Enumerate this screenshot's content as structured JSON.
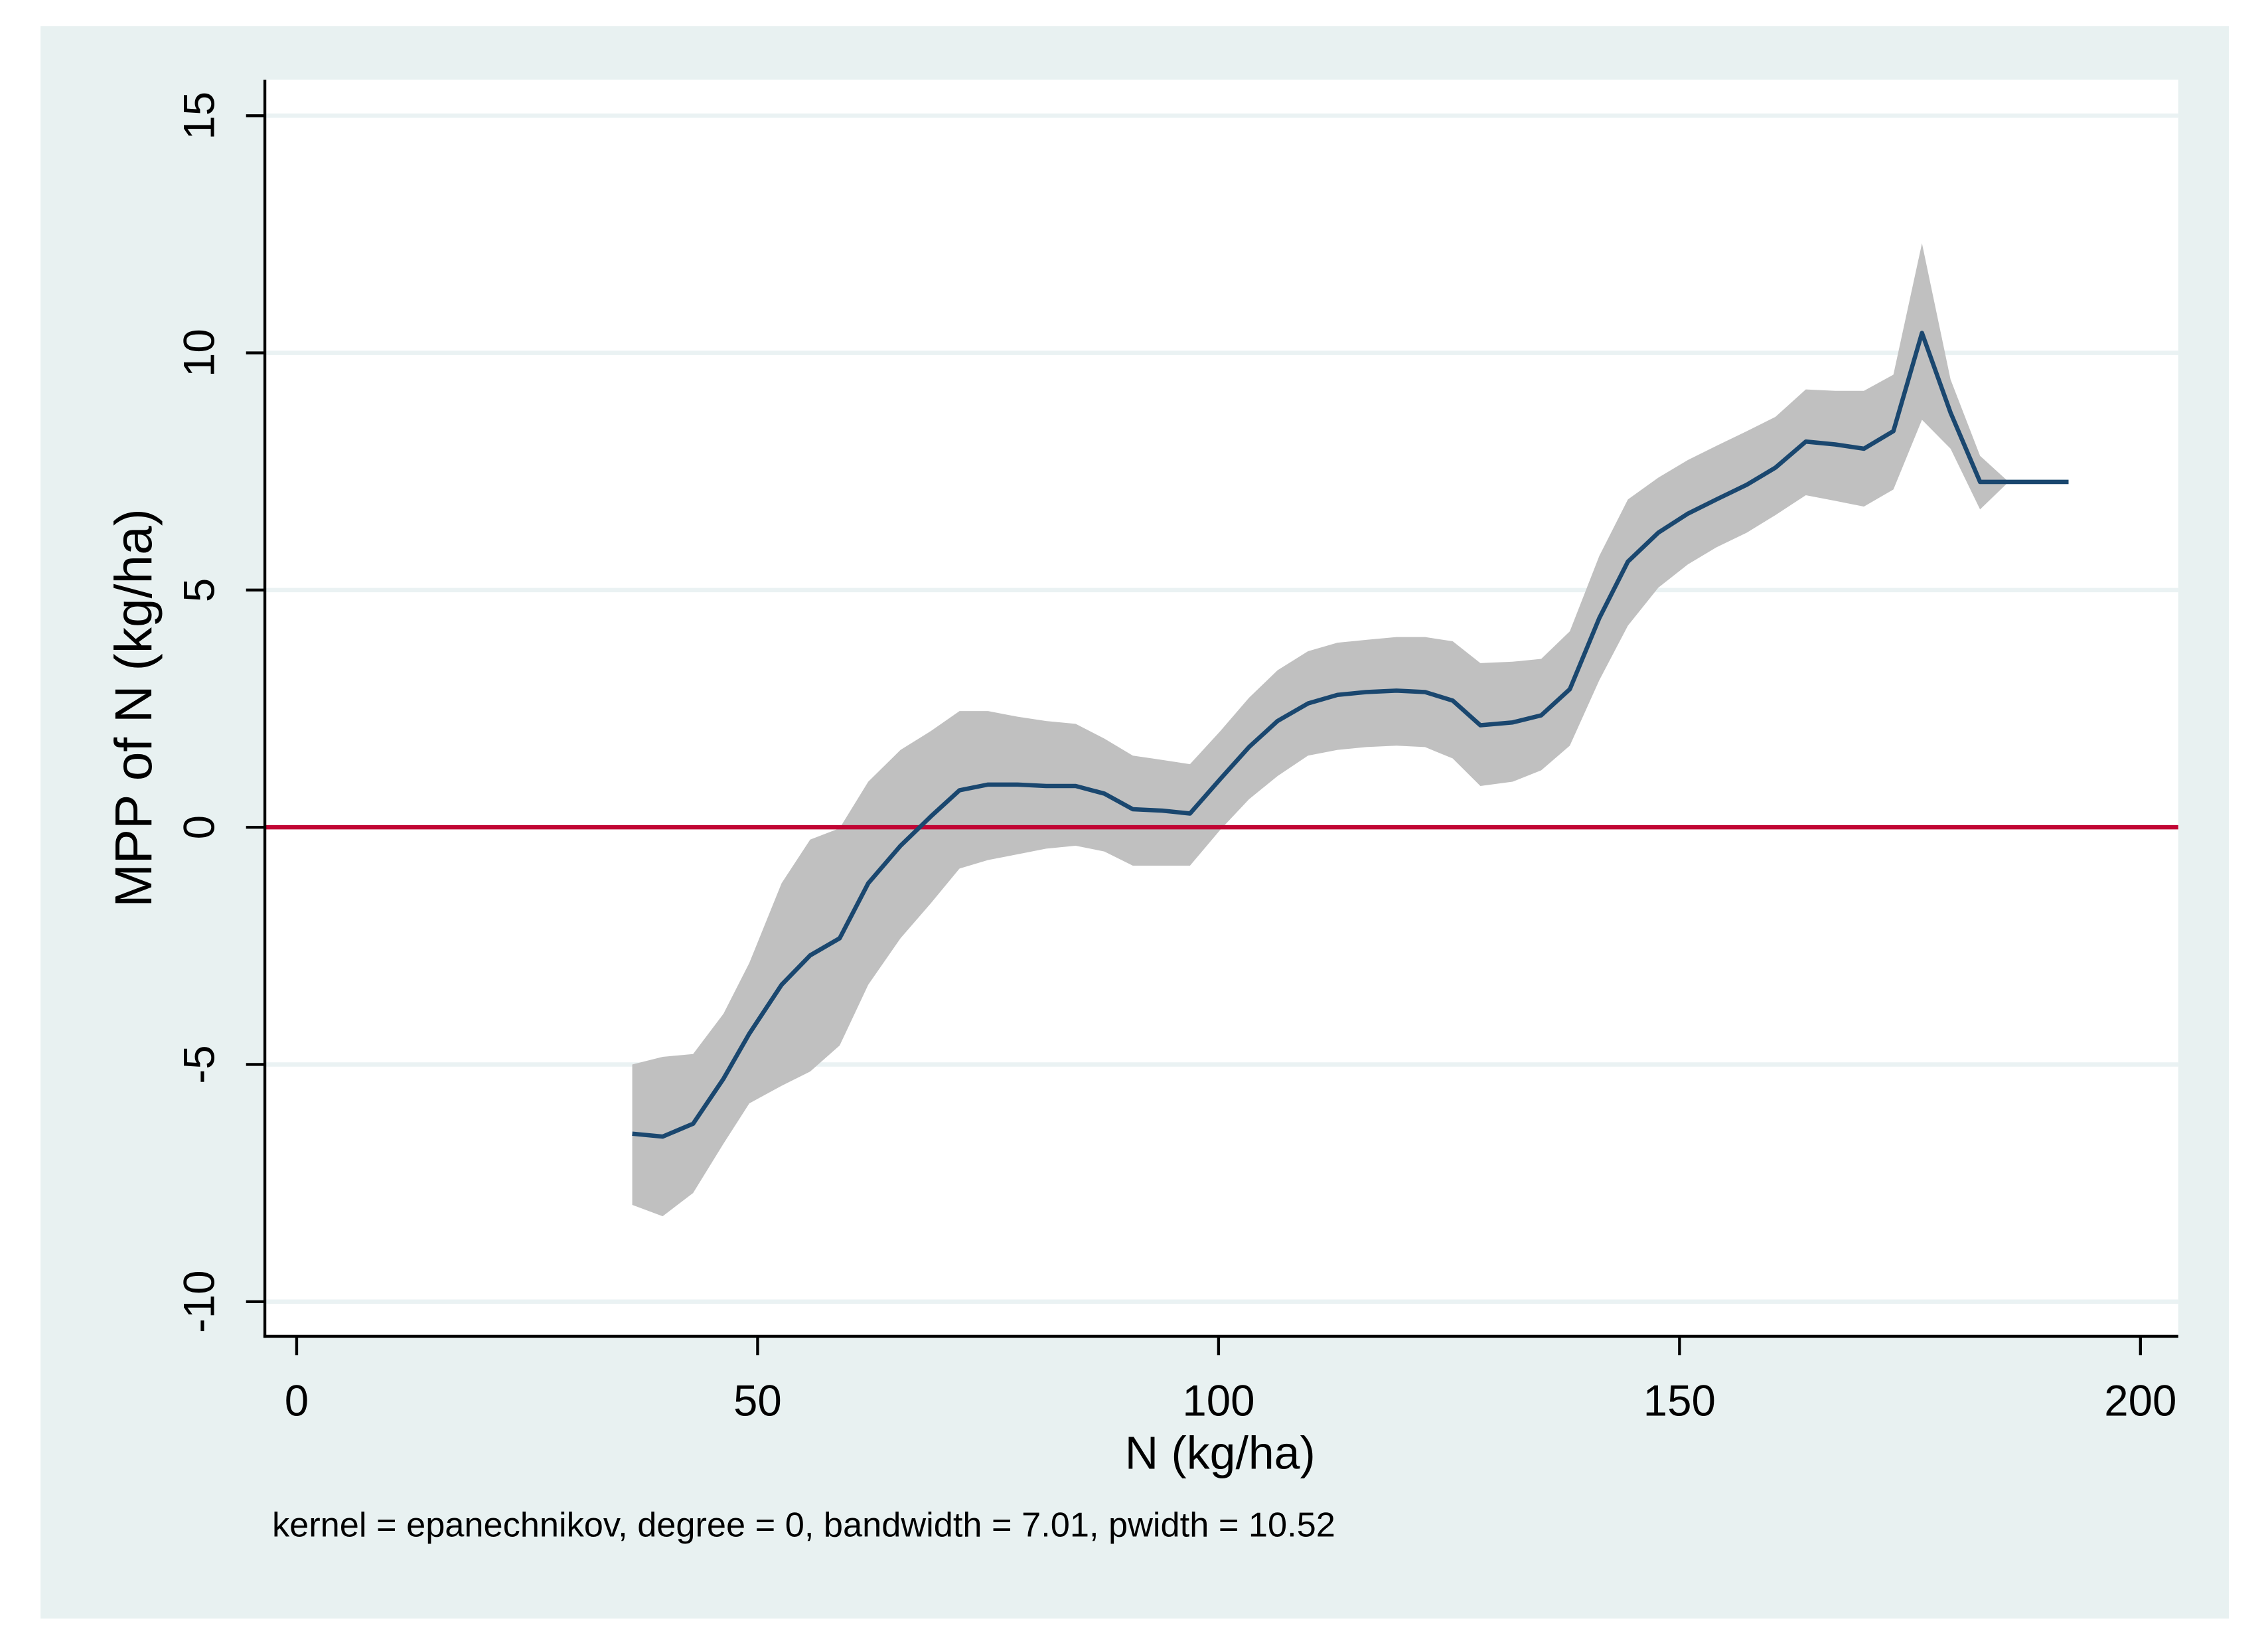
{
  "chart_data": {
    "type": "line",
    "x_label": "N (kg/ha)",
    "y_label": "MPP of N (kg/ha)",
    "note": "kernel = epanechnikov, degree = 0, bandwidth = 7.01, pwidth = 10.52",
    "xlim": [
      -3.45,
      204.1
    ],
    "ylim": [
      -10.73,
      15.76
    ],
    "xticks": [
      0,
      50,
      100,
      150,
      200
    ],
    "yticks": [
      -10,
      -5,
      0,
      5,
      10,
      15
    ],
    "grid": true,
    "x": [
      36.4,
      39.7,
      43.0,
      46.3,
      49.1,
      52.6,
      55.7,
      58.9,
      62.0,
      65.5,
      68.8,
      71.9,
      75.0,
      78.2,
      81.3,
      84.5,
      87.6,
      90.7,
      93.9,
      96.9,
      100.2,
      103.3,
      106.4,
      109.7,
      112.9,
      116.0,
      119.3,
      122.4,
      125.4,
      128.4,
      131.9,
      135.0,
      138.1,
      141.3,
      144.4,
      147.7,
      150.9,
      154.0,
      157.3,
      160.4,
      163.7,
      166.9,
      170.0,
      173.2,
      176.3,
      179.4,
      182.6,
      185.7,
      189.0,
      192.2
    ],
    "line": {
      "color": "#1a476f",
      "values": [
        -6.46,
        -6.52,
        -6.25,
        -5.3,
        -4.35,
        -3.32,
        -2.7,
        -2.34,
        -1.18,
        -0.39,
        0.23,
        0.78,
        0.9,
        0.9,
        0.87,
        0.87,
        0.71,
        0.38,
        0.35,
        0.29,
        1.02,
        1.69,
        2.24,
        2.61,
        2.79,
        2.85,
        2.88,
        2.85,
        2.67,
        2.15,
        2.21,
        2.36,
        2.91,
        4.41,
        5.6,
        6.21,
        6.61,
        6.91,
        7.22,
        7.58,
        8.13,
        8.07,
        7.98,
        8.35,
        10.42,
        8.74,
        7.28,
        7.28,
        7.28,
        7.28
      ]
    },
    "band": {
      "color": "#c0c0c0",
      "lower": [
        -7.96,
        -8.2,
        -7.71,
        -6.67,
        -5.82,
        -5.45,
        -5.15,
        -4.6,
        -3.32,
        -2.34,
        -1.6,
        -0.87,
        -0.69,
        -0.57,
        -0.45,
        -0.39,
        -0.51,
        -0.81,
        -0.81,
        -0.81,
        -0.05,
        0.59,
        1.08,
        1.51,
        1.63,
        1.69,
        1.72,
        1.69,
        1.45,
        0.87,
        0.96,
        1.2,
        1.72,
        3.1,
        4.25,
        5.05,
        5.54,
        5.9,
        6.21,
        6.58,
        7.0,
        6.88,
        6.76,
        7.12,
        8.59,
        7.98,
        6.7,
        7.28,
        null,
        null
      ],
      "upper": [
        -5.0,
        -4.84,
        -4.78,
        -3.93,
        -2.86,
        -1.18,
        -0.26,
        -0.02,
        0.96,
        1.63,
        2.03,
        2.45,
        2.45,
        2.33,
        2.24,
        2.18,
        1.87,
        1.51,
        1.42,
        1.33,
        2.03,
        2.73,
        3.31,
        3.71,
        3.89,
        3.95,
        4.01,
        4.01,
        3.92,
        3.46,
        3.49,
        3.55,
        4.13,
        5.72,
        6.91,
        7.37,
        7.74,
        8.04,
        8.35,
        8.65,
        9.23,
        9.2,
        9.2,
        9.54,
        12.31,
        9.44,
        7.83,
        7.28,
        null,
        null
      ]
    },
    "hline": {
      "value": 0,
      "color": "#c10534"
    }
  }
}
